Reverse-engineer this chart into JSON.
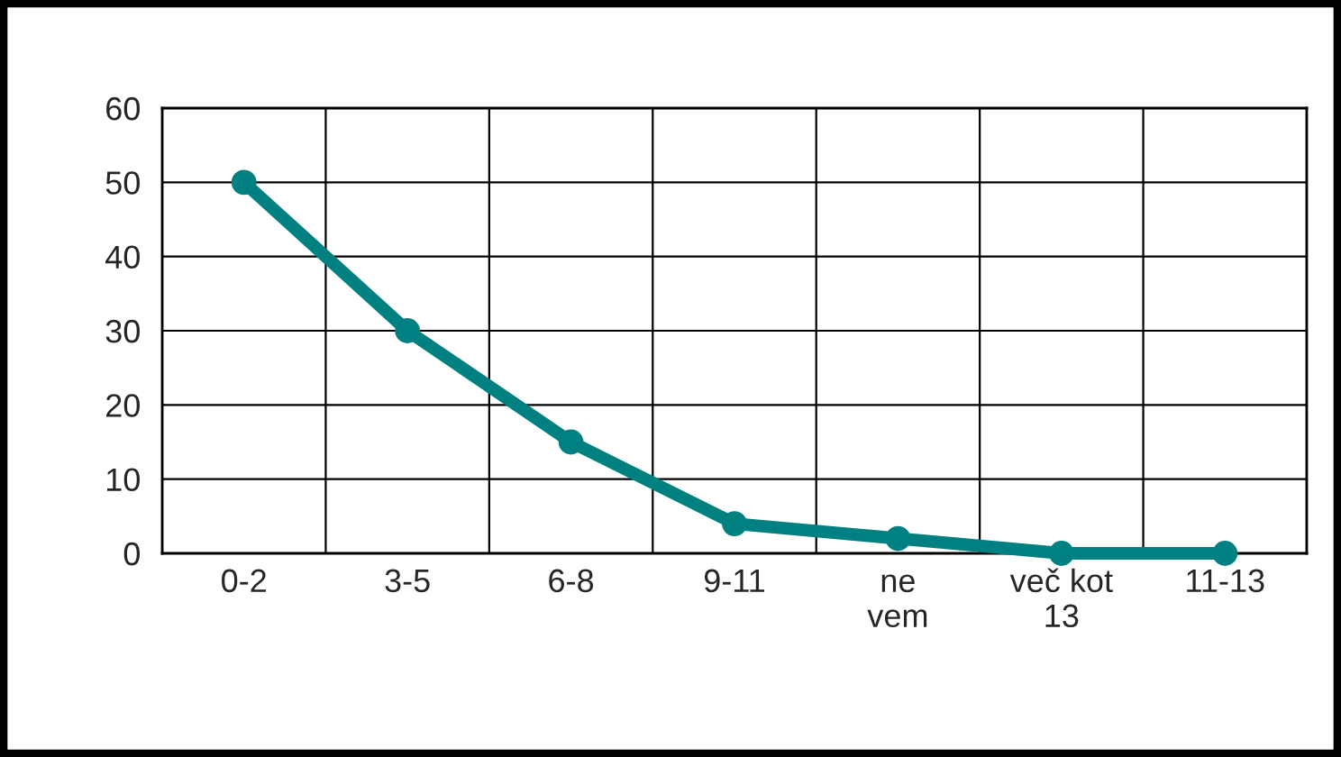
{
  "chart_data": {
    "type": "line",
    "categories": [
      "0-2",
      "3-5",
      "6-8",
      "9-11",
      "ne\nvem",
      "več kot\n13",
      "11-13"
    ],
    "series": [
      {
        "color": "#008080",
        "values": [
          50,
          30,
          15,
          4,
          2,
          0,
          0
        ]
      }
    ],
    "ylim": [
      0,
      60
    ],
    "yticks": [
      0,
      10,
      20,
      30,
      40,
      50,
      60
    ],
    "grid": true,
    "marker": "circle",
    "line_style": "solid",
    "legend": false
  }
}
